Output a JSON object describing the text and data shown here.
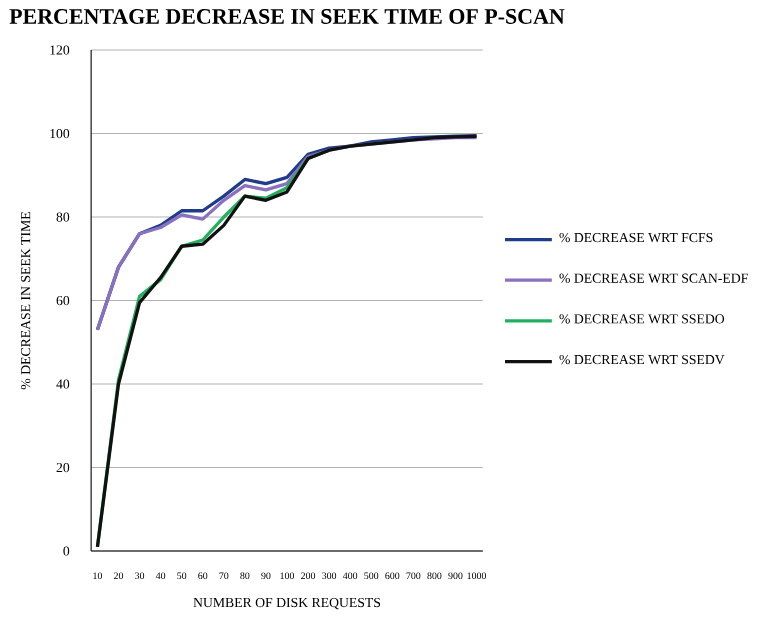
{
  "chart_data": {
    "type": "line",
    "title": "PERCENTAGE DECREASE IN SEEK TIME OF P-SCAN",
    "xlabel": "NUMBER OF DISK REQUESTS",
    "ylabel": "% DECREASE IN SEEK TIME",
    "categories": [
      "10",
      "20",
      "30",
      "40",
      "50",
      "60",
      "70",
      "80",
      "90",
      "100",
      "200",
      "300",
      "400",
      "500",
      "600",
      "700",
      "800",
      "900",
      "1000"
    ],
    "series": [
      {
        "name": "% DECREASE WRT FCFS",
        "color": "#1f3c88",
        "values": [
          53,
          68,
          76,
          78,
          81.5,
          81.5,
          85,
          89,
          88,
          89.5,
          95,
          96.5,
          97,
          98,
          98.5,
          99,
          99.2,
          99.4,
          99.5
        ]
      },
      {
        "name": "% DECREASE WRT SCAN-EDF",
        "color": "#8a70c0",
        "values": [
          53,
          68,
          76,
          77.5,
          80.5,
          79.5,
          84,
          87.5,
          86.5,
          88,
          94.5,
          96,
          97,
          97.5,
          98,
          98.5,
          98.7,
          99,
          99
        ]
      },
      {
        "name": "% DECREASE WRT SSEDO",
        "color": "#22b060",
        "values": [
          1,
          41,
          61,
          65,
          73,
          74.5,
          80,
          85,
          84.5,
          87,
          94,
          96,
          null,
          null,
          null,
          null,
          null,
          null,
          null
        ]
      },
      {
        "name": "% DECREASE WRT SSEDV",
        "color": "#111111",
        "values": [
          1,
          40,
          59.5,
          65.5,
          73,
          73.5,
          78,
          85,
          84,
          86,
          94,
          96,
          97,
          97.5,
          98,
          98.5,
          99,
          99.2,
          99.3
        ]
      }
    ],
    "ylim": [
      0,
      120
    ],
    "yticks": [
      0,
      20,
      40,
      60,
      80,
      100,
      120
    ],
    "grid": "y",
    "legend": "right",
    "marker": "none",
    "line_style": "solid"
  }
}
